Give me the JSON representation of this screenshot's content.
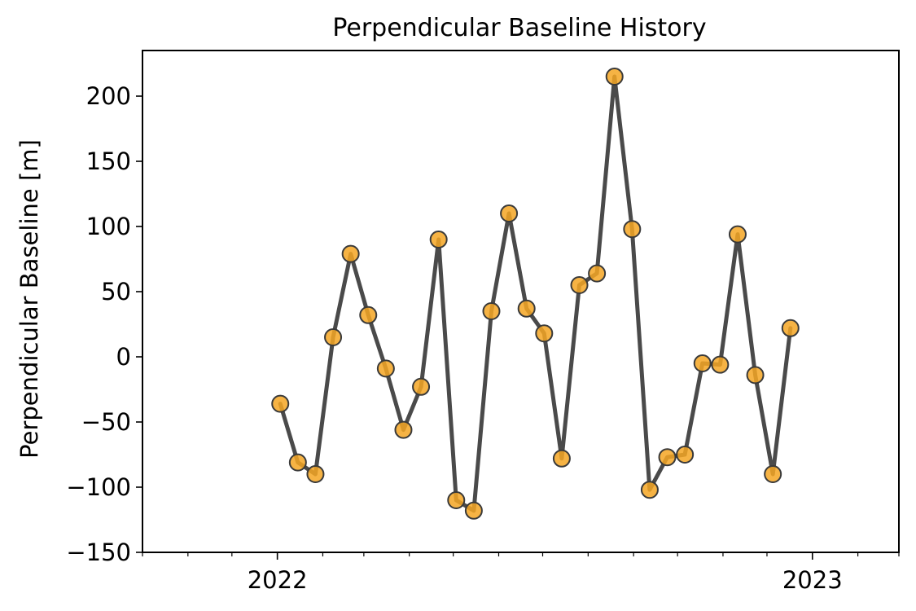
{
  "chart_data": {
    "type": "line",
    "title": "Perpendicular Baseline History",
    "xlabel": "",
    "ylabel": "Perpendicular Baseline [m]",
    "xlim": [
      "2021-10-01",
      "2023-03-01"
    ],
    "ylim": [
      -150,
      235
    ],
    "yticks": [
      -150,
      -100,
      -50,
      0,
      50,
      100,
      150,
      200
    ],
    "xticks": [
      {
        "date": "2022-01-01",
        "label": "2022"
      },
      {
        "date": "2023-01-01",
        "label": "2023"
      }
    ],
    "grid": false,
    "legend": "none",
    "colors": {
      "line": "#404040",
      "marker_fill": "#F5A623",
      "marker_edge": "#3a3a3a",
      "axes": "#000000"
    },
    "series": [
      {
        "x": [
          "2022-01-03",
          "2022-01-15",
          "2022-01-27",
          "2022-02-08",
          "2022-02-20",
          "2022-03-04",
          "2022-03-16",
          "2022-03-28",
          "2022-04-09",
          "2022-04-21",
          "2022-05-03",
          "2022-05-15",
          "2022-05-27",
          "2022-06-08",
          "2022-06-20",
          "2022-07-02",
          "2022-07-14",
          "2022-07-26",
          "2022-08-07",
          "2022-08-19",
          "2022-08-31",
          "2022-09-12",
          "2022-09-24",
          "2022-10-06",
          "2022-10-18",
          "2022-10-30",
          "2022-11-11",
          "2022-11-23",
          "2022-12-05",
          "2022-12-17",
          "2022-12-29"
        ],
        "values": [
          -36,
          -81,
          -90,
          15,
          79,
          32,
          -9,
          -56,
          -23,
          90,
          -110,
          -118,
          35,
          110,
          37,
          18,
          -78,
          55,
          64,
          215,
          98,
          -102,
          -77,
          -75,
          -5,
          -6,
          94,
          -14,
          -90,
          22,
          null
        ]
      }
    ]
  }
}
